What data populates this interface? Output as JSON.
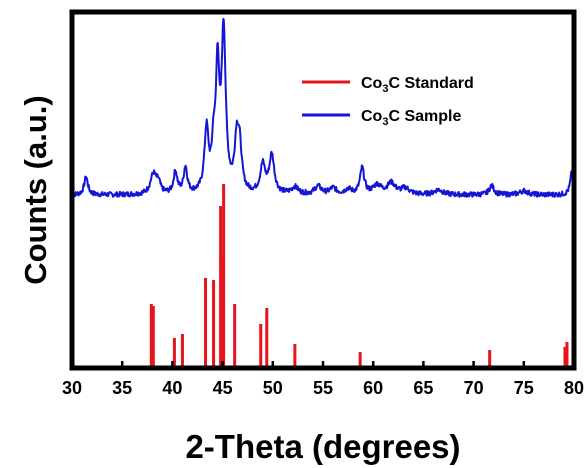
{
  "chart_data": {
    "type": "line",
    "xlabel": "2-Theta (degrees)",
    "ylabel": "Counts (a.u.)",
    "xlim": [
      30,
      80
    ],
    "x_ticks": [
      "30",
      "35",
      "40",
      "45",
      "50",
      "55",
      "60",
      "65",
      "70",
      "75",
      "80"
    ],
    "grid": false,
    "legend_position": "top-right",
    "legend": [
      {
        "prefix": "Co",
        "sub": "3",
        "suffix": "C Standard",
        "color": "#e8141c"
      },
      {
        "prefix": "Co",
        "sub": "3",
        "suffix": "C Sample",
        "color": "#1515d6"
      }
    ],
    "series": [
      {
        "name": "Co3C Sample",
        "kind": "line",
        "color": "#1515d6",
        "baseline": 195,
        "noise_amplitude": 2.5,
        "peaks": [
          {
            "x": 31.4,
            "height": 18,
            "width": 0.22
          },
          {
            "x": 38.1,
            "height": 20,
            "width": 0.35
          },
          {
            "x": 38.6,
            "height": 10,
            "width": 0.25
          },
          {
            "x": 40.3,
            "height": 22,
            "width": 0.22
          },
          {
            "x": 41.3,
            "height": 26,
            "width": 0.22
          },
          {
            "x": 43.4,
            "height": 62,
            "width": 0.25
          },
          {
            "x": 44.1,
            "height": 40,
            "width": 0.2
          },
          {
            "x": 44.5,
            "height": 118,
            "width": 0.2
          },
          {
            "x": 45.1,
            "height": 160,
            "width": 0.25
          },
          {
            "x": 46.4,
            "height": 48,
            "width": 0.25
          },
          {
            "x": 46.7,
            "height": 40,
            "width": 0.25
          },
          {
            "x": 49.0,
            "height": 28,
            "width": 0.3
          },
          {
            "x": 49.9,
            "height": 38,
            "width": 0.3
          },
          {
            "x": 52.2,
            "height": 7,
            "width": 0.4
          },
          {
            "x": 54.5,
            "height": 8,
            "width": 0.4
          },
          {
            "x": 56.0,
            "height": 6,
            "width": 0.4
          },
          {
            "x": 57.5,
            "height": 5,
            "width": 0.4
          },
          {
            "x": 58.9,
            "height": 26,
            "width": 0.25
          },
          {
            "x": 60.4,
            "height": 9,
            "width": 0.5
          },
          {
            "x": 61.8,
            "height": 11,
            "width": 0.5
          },
          {
            "x": 63.2,
            "height": 6,
            "width": 0.5
          },
          {
            "x": 66.5,
            "height": 5,
            "width": 0.5
          },
          {
            "x": 71.8,
            "height": 9,
            "width": 0.3
          },
          {
            "x": 75.0,
            "height": 4,
            "width": 0.5
          },
          {
            "x": 79.8,
            "height": 24,
            "width": 0.2
          }
        ]
      },
      {
        "name": "Co3C Standard",
        "kind": "stick",
        "color": "#e8141c",
        "baseline": 0,
        "x": [
          37.9,
          38.1,
          40.2,
          41.0,
          43.3,
          44.1,
          44.8,
          45.0,
          45.1,
          46.2,
          48.8,
          49.4,
          52.2,
          58.7,
          71.6,
          79.1,
          79.3
        ],
        "y": [
          62,
          60,
          28,
          32,
          88,
          86,
          160,
          108,
          182,
          62,
          42,
          58,
          22,
          14,
          16,
          19,
          24
        ]
      }
    ]
  }
}
